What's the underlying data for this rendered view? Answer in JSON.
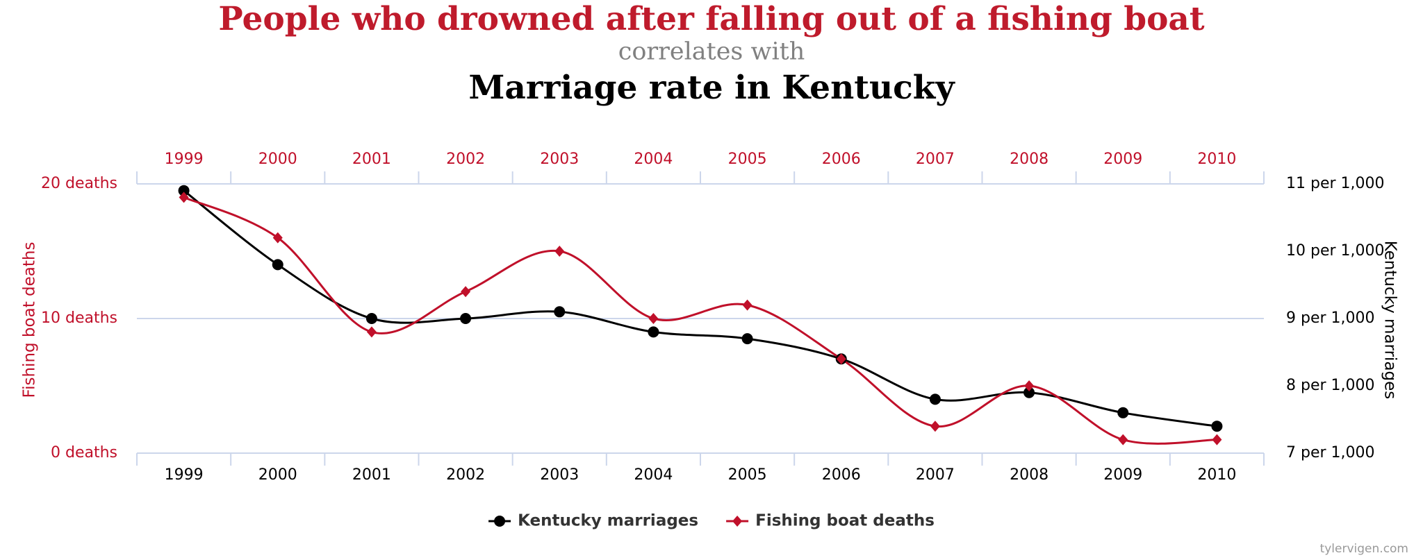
{
  "chart_data": {
    "type": "line",
    "title": "People who drowned after falling out of a fishing boat",
    "subtitle": "correlates with",
    "title2": "Marriage rate in Kentucky",
    "ylabel": "Fishing boat deaths",
    "y2label": "Kentucky marriages",
    "footer": "tylervigen.com",
    "categories": [
      "1999",
      "2000",
      "2001",
      "2002",
      "2003",
      "2004",
      "2005",
      "2006",
      "2007",
      "2008",
      "2009",
      "2010"
    ],
    "ylim": [
      0,
      20
    ],
    "yticks": [
      {
        "value": 0,
        "label": "0 deaths"
      },
      {
        "value": 10,
        "label": "10 deaths"
      },
      {
        "value": 20,
        "label": "20 deaths"
      }
    ],
    "y2lim": [
      7,
      11
    ],
    "y2ticks": [
      {
        "value": 7,
        "label": "7 per 1,000"
      },
      {
        "value": 8,
        "label": "8 per 1,000"
      },
      {
        "value": 9,
        "label": "9 per 1,000"
      },
      {
        "value": 10,
        "label": "10 per 1,000"
      },
      {
        "value": 11,
        "label": "11 per 1,000"
      }
    ],
    "grid": true,
    "series": [
      {
        "name": "Kentucky marriages",
        "color": "#000000",
        "axis": "y2",
        "marker": "circle",
        "values": [
          10.9,
          9.8,
          9.0,
          9.0,
          9.1,
          8.8,
          8.7,
          8.4,
          7.8,
          7.9,
          7.6,
          7.4
        ]
      },
      {
        "name": "Fishing boat deaths",
        "color": "#c0102a",
        "axis": "y",
        "marker": "diamond",
        "values": [
          19,
          16,
          9,
          12,
          15,
          10,
          11,
          7,
          2,
          5,
          1,
          1
        ]
      }
    ]
  }
}
